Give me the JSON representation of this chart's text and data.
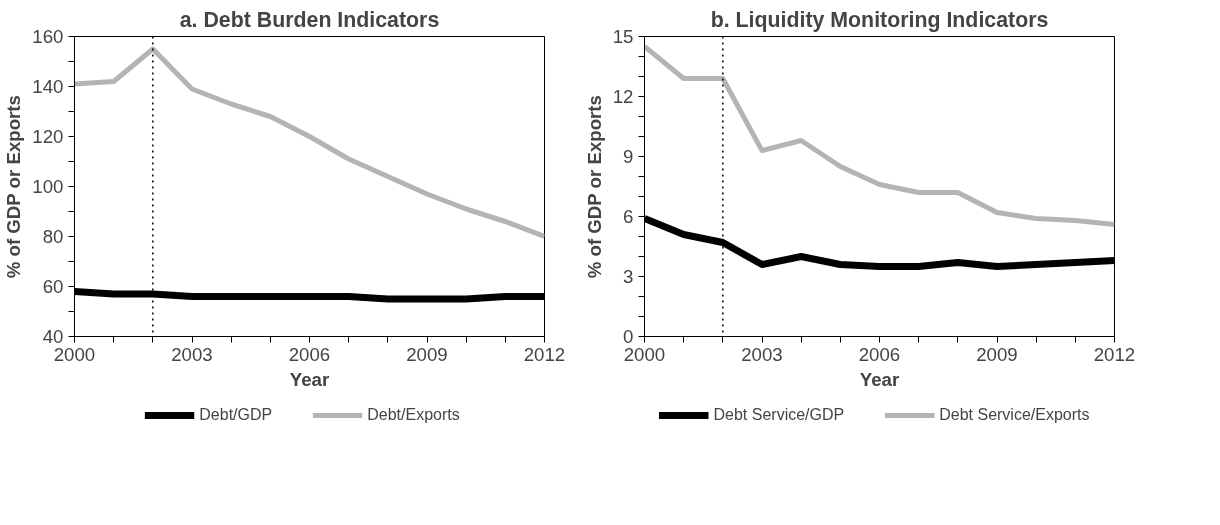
{
  "chart_data": [
    {
      "type": "line",
      "title": "a. Debt Burden Indicators",
      "xlabel": "Year",
      "ylabel": "% of GDP or Exports",
      "x": [
        2000,
        2001,
        2002,
        2003,
        2004,
        2005,
        2006,
        2007,
        2008,
        2009,
        2010,
        2011,
        2012
      ],
      "series": [
        {
          "name": "Debt/GDP",
          "color": "#000000",
          "values": [
            58,
            57,
            57,
            56,
            56,
            56,
            56,
            56,
            55,
            55,
            55,
            56,
            56
          ]
        },
        {
          "name": "Debt/Exports",
          "color": "#b4b4b4",
          "values": [
            141,
            142,
            155,
            139,
            133,
            128,
            120,
            111,
            104,
            97,
            91,
            86,
            80
          ]
        }
      ],
      "xlim": [
        2000,
        2012
      ],
      "ylim": [
        40,
        160
      ],
      "xticks": [
        2000,
        {
          "value": 2001,
          "label": null
        },
        {
          "value": 2002,
          "label": null
        },
        2003,
        {
          "value": 2004,
          "label": null
        },
        {
          "value": 2005,
          "label": null
        },
        2006,
        {
          "value": 2007,
          "label": null
        },
        {
          "value": 2008,
          "label": null
        },
        2009,
        {
          "value": 2010,
          "label": null
        },
        {
          "value": 2011,
          "label": null
        },
        2012
      ],
      "yticks": [
        40,
        {
          "value": 50,
          "label": null
        },
        60,
        {
          "value": 70,
          "label": null
        },
        80,
        {
          "value": 90,
          "label": null
        },
        100,
        {
          "value": 110,
          "label": null
        },
        120,
        {
          "value": 130,
          "label": null
        },
        140,
        {
          "value": 150,
          "label": null
        },
        160
      ],
      "ref_lines": [
        {
          "axis": "x",
          "value": 2002,
          "color": "#000000",
          "line_style": "dotted"
        }
      ],
      "grid": false,
      "legend": "bottom",
      "marker": "none",
      "line_style": "solid"
    },
    {
      "type": "line",
      "title": "b. Liquidity Monitoring Indicators",
      "xlabel": "Year",
      "ylabel": "% of GDP or Exports",
      "x": [
        2000,
        2001,
        2002,
        2003,
        2004,
        2005,
        2006,
        2007,
        2008,
        2009,
        2010,
        2011,
        2012
      ],
      "series": [
        {
          "name": "Debt Service/GDP",
          "color": "#000000",
          "values": [
            5.9,
            5.1,
            4.7,
            3.6,
            4.0,
            3.6,
            3.5,
            3.5,
            3.7,
            3.5,
            3.6,
            3.7,
            3.8
          ]
        },
        {
          "name": "Debt Service/Exports",
          "color": "#b4b4b4",
          "values": [
            14.5,
            12.9,
            12.9,
            9.3,
            9.8,
            8.5,
            7.6,
            7.2,
            7.2,
            6.2,
            5.9,
            5.8,
            5.6
          ]
        }
      ],
      "xlim": [
        2000,
        2012
      ],
      "ylim": [
        0,
        15
      ],
      "xticks": [
        2000,
        {
          "value": 2001,
          "label": null
        },
        {
          "value": 2002,
          "label": null
        },
        2003,
        {
          "value": 2004,
          "label": null
        },
        {
          "value": 2005,
          "label": null
        },
        2006,
        {
          "value": 2007,
          "label": null
        },
        {
          "value": 2008,
          "label": null
        },
        2009,
        {
          "value": 2010,
          "label": null
        },
        {
          "value": 2011,
          "label": null
        },
        2012
      ],
      "yticks": [
        0,
        {
          "value": 1,
          "label": null
        },
        {
          "value": 2,
          "label": null
        },
        3,
        {
          "value": 4,
          "label": null
        },
        {
          "value": 5,
          "label": null
        },
        6,
        {
          "value": 7,
          "label": null
        },
        {
          "value": 8,
          "label": null
        },
        9,
        {
          "value": 10,
          "label": null
        },
        {
          "value": 11,
          "label": null
        },
        12,
        {
          "value": 13,
          "label": null
        },
        {
          "value": 14,
          "label": null
        },
        15
      ],
      "ref_lines": [
        {
          "axis": "x",
          "value": 2002,
          "color": "#000000",
          "line_style": "dotted"
        }
      ],
      "grid": false,
      "legend": "bottom",
      "marker": "none",
      "line_style": "solid"
    }
  ]
}
